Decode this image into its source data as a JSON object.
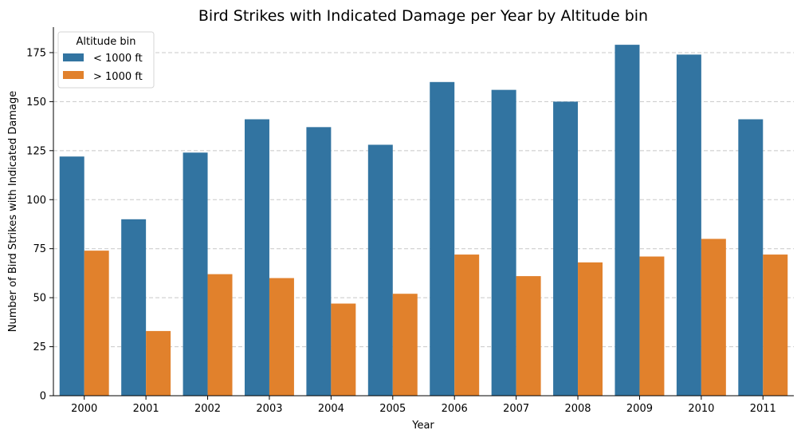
{
  "chart_data": {
    "type": "bar",
    "title": "Bird Strikes with Indicated Damage per Year by Altitude bin",
    "xlabel": "Year",
    "ylabel": "Number of Bird Strikes with Indicated Damage",
    "categories": [
      "2000",
      "2001",
      "2002",
      "2003",
      "2004",
      "2005",
      "2006",
      "2007",
      "2008",
      "2009",
      "2010",
      "2011"
    ],
    "series": [
      {
        "name": "< 1000 ft",
        "color": "#3274a1",
        "values": [
          122,
          90,
          124,
          141,
          137,
          128,
          160,
          156,
          150,
          179,
          174,
          141
        ]
      },
      {
        "name": "> 1000 ft",
        "color": "#e1812c",
        "values": [
          74,
          33,
          62,
          60,
          47,
          52,
          72,
          61,
          68,
          71,
          80,
          72
        ]
      }
    ],
    "ylim": [
      0,
      188
    ],
    "yticks": [
      0,
      25,
      50,
      75,
      100,
      125,
      150,
      175
    ],
    "grid": "y-dashed",
    "legend": {
      "title": "Altitude bin",
      "placement": "top-left"
    }
  }
}
